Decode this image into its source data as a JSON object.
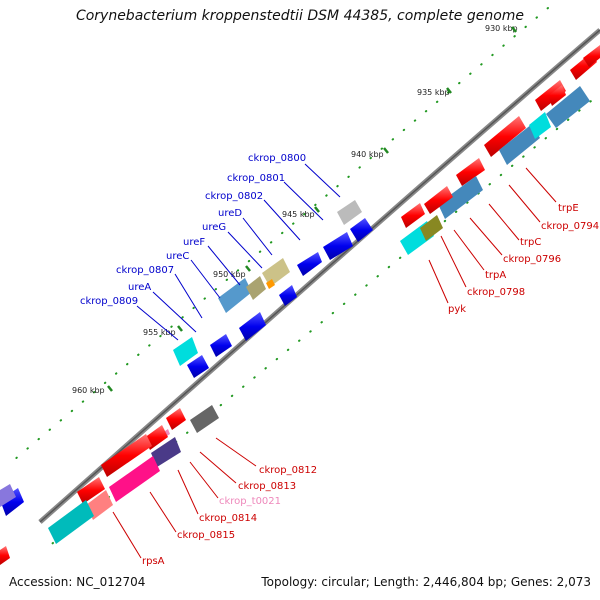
{
  "title": "Corynebacterium kroppenstedtii DSM 44385, complete genome",
  "footer": {
    "accession": "Accession: NC_012704",
    "summary": "Topology: circular; Length: 2,446,804 bp; Genes: 2,073"
  },
  "scale_labels": [
    "930 kbp",
    "935 kbp",
    "940 kbp",
    "945 kbp",
    "950 kbp",
    "955 kbp",
    "960 kbp"
  ],
  "colors": {
    "backbone": "#666666",
    "cds_forward": "#0000ee",
    "cds_reverse": "#ff0000",
    "label_forward": "#0000cc",
    "label_reverse": "#cc0000",
    "trna": "#ee88bb",
    "tick": "#228822"
  },
  "outer_labels": [
    {
      "text": "ckrop_0800",
      "strand": "forward"
    },
    {
      "text": "ckrop_0801",
      "strand": "forward"
    },
    {
      "text": "ckrop_0802",
      "strand": "forward"
    },
    {
      "text": "ureD",
      "strand": "forward"
    },
    {
      "text": "ureG",
      "strand": "forward"
    },
    {
      "text": "ureF",
      "strand": "forward"
    },
    {
      "text": "ureC",
      "strand": "forward"
    },
    {
      "text": "ckrop_0807",
      "strand": "forward"
    },
    {
      "text": "ureA",
      "strand": "forward"
    },
    {
      "text": "ckrop_0809",
      "strand": "forward"
    }
  ],
  "inner_labels": [
    {
      "text": "trpE",
      "strand": "reverse"
    },
    {
      "text": "ckrop_0794",
      "strand": "reverse"
    },
    {
      "text": "trpC",
      "strand": "reverse"
    },
    {
      "text": "ckrop_0796",
      "strand": "reverse"
    },
    {
      "text": "trpA",
      "strand": "reverse"
    },
    {
      "text": "ckrop_0798",
      "strand": "reverse"
    },
    {
      "text": "pyk",
      "strand": "reverse"
    },
    {
      "text": "ckrop_0812",
      "strand": "reverse"
    },
    {
      "text": "ckrop_0813",
      "strand": "reverse"
    },
    {
      "text": "ckrop_t0021",
      "strand": "trna"
    },
    {
      "text": "ckrop_0814",
      "strand": "reverse"
    },
    {
      "text": "ckrop_0815",
      "strand": "reverse"
    },
    {
      "text": "rpsA",
      "strand": "reverse"
    }
  ]
}
